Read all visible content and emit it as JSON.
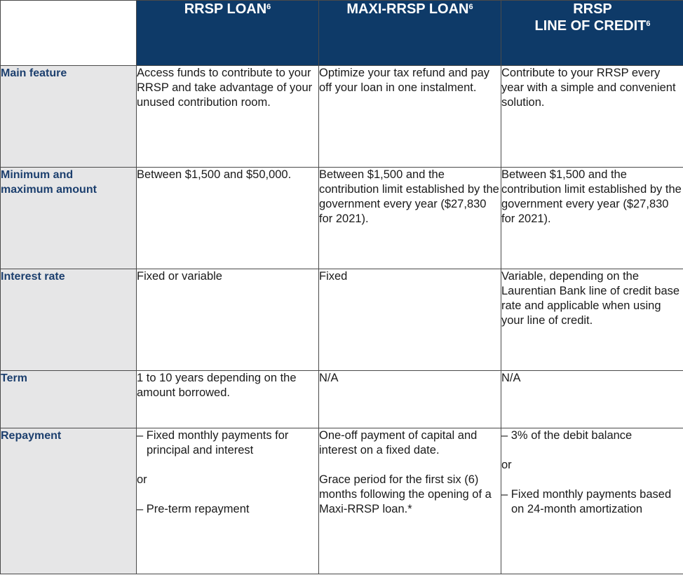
{
  "headers": {
    "rrsp_loan": {
      "name": "RRSP LOAN",
      "sup": "6"
    },
    "maxi_rrsp_loan": {
      "name": "MAXI-RRSP LOAN",
      "sup": "6"
    },
    "line_of_credit": {
      "line1": "RRSP",
      "line2": "LINE OF CREDIT",
      "sup": "6"
    }
  },
  "rows": {
    "main_feature": {
      "label": "Main feature",
      "rrsp_loan": "Access funds to contribute to your RRSP and take advantage of your unused contribution room.",
      "maxi_rrsp_loan": "Optimize your tax refund and pay off your loan in one instalment.",
      "line_of_credit": "Contribute to your RRSP every year with a simple and convenient solution."
    },
    "min_max": {
      "label": "Minimum and maximum amount",
      "rrsp_loan": "Between $1,500 and $50,000.",
      "maxi_rrsp_loan": "Between $1,500 and the contribution limit established by the government every year ($27,830 for 2021).",
      "line_of_credit": "Between $1,500 and the contribution limit established by the government every year ($27,830 for 2021)."
    },
    "interest_rate": {
      "label": "Interest rate",
      "rrsp_loan": "Fixed or variable",
      "maxi_rrsp_loan": "Fixed",
      "line_of_credit": "Variable, depending on the Laurentian Bank line of credit base rate and applicable when using your line of credit."
    },
    "term": {
      "label": "Term",
      "rrsp_loan": "1 to 10 years depending on the amount borrowed.",
      "maxi_rrsp_loan": "N/A",
      "line_of_credit": "N/A"
    },
    "repayment": {
      "label": "Repayment",
      "rrsp_loan": {
        "item1": "– Fixed monthly payments for principal and interest",
        "or": "or",
        "item2": "– Pre-term repayment"
      },
      "maxi_rrsp_loan": {
        "para1": "One-off payment of capital and interest on a fixed date.",
        "para2": "Grace period for the first six (6) months following the opening of a Maxi-RRSP loan.*"
      },
      "line_of_credit": {
        "item1": "– 3% of the debit balance",
        "or": "or",
        "item2": "– Fixed monthly payments based on 24-month amortization"
      }
    }
  }
}
